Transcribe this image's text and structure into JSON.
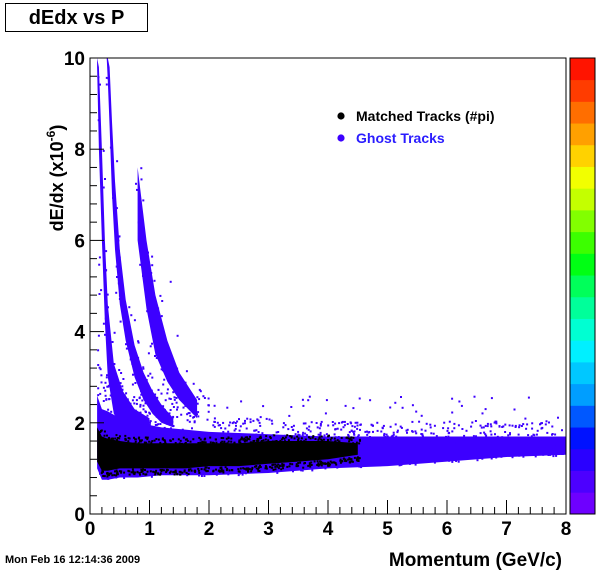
{
  "chart_data": {
    "type": "heatmap",
    "title": "dEdx vs P",
    "xlabel": "Momentum  (GeV/c)",
    "ylabel": "dE/dx (x10",
    "ylabel_exp": "-6",
    "ylabel_close": ")",
    "xlim": [
      0,
      8
    ],
    "ylim": [
      0,
      10
    ],
    "xticks": [
      0,
      1,
      2,
      3,
      4,
      5,
      6,
      7,
      8
    ],
    "yticks": [
      0,
      2,
      4,
      6,
      8,
      10
    ],
    "grid": false,
    "legend_position": "top-right",
    "series": [
      {
        "name": "Matched Tracks (#pi)",
        "color": "#000000",
        "band": {
          "p": [
            0.12,
            0.2,
            0.3,
            0.5,
            0.8,
            1.2,
            1.6,
            2.0,
            2.5,
            3.0,
            3.5,
            4.0,
            4.5
          ],
          "low": [
            1.15,
            0.95,
            0.95,
            1.0,
            1.0,
            1.0,
            1.0,
            1.05,
            1.05,
            1.1,
            1.15,
            1.2,
            1.3
          ],
          "high": [
            1.9,
            1.7,
            1.65,
            1.6,
            1.55,
            1.55,
            1.55,
            1.55,
            1.55,
            1.6,
            1.6,
            1.6,
            1.55
          ]
        }
      },
      {
        "name": "Ghost Tracks",
        "color": "#3c00ff",
        "band": {
          "p": [
            0.12,
            0.2,
            0.3,
            0.5,
            0.8,
            1.2,
            1.6,
            2.0,
            3.0,
            4.0,
            5.0,
            6.0,
            7.0,
            8.0
          ],
          "low": [
            1.0,
            0.75,
            0.75,
            0.8,
            0.8,
            0.85,
            0.85,
            0.85,
            0.9,
            1.0,
            1.05,
            1.15,
            1.25,
            1.3
          ],
          "high": [
            2.6,
            2.3,
            2.25,
            2.1,
            2.0,
            1.9,
            1.85,
            1.8,
            1.75,
            1.7,
            1.7,
            1.7,
            1.7,
            1.7
          ]
        },
        "curves": [
          {
            "p": [
              0.12,
              0.15,
              0.2,
              0.25,
              0.3,
              0.4,
              0.55,
              0.75,
              1.0
            ],
            "low": [
              9.8,
              8.0,
              6.0,
              4.2,
              3.0,
              2.2,
              1.9,
              1.8,
              1.7
            ],
            "high": [
              10.0,
              9.8,
              8.0,
              6.0,
              4.6,
              3.3,
              2.7,
              2.3,
              2.1
            ]
          },
          {
            "p": [
              0.28,
              0.3,
              0.33,
              0.37,
              0.42,
              0.5,
              0.6,
              0.75,
              0.9,
              1.05,
              1.2,
              1.4
            ],
            "low": [
              10.0,
              9.5,
              8.5,
              7.0,
              5.8,
              4.6,
              3.8,
              3.0,
              2.5,
              2.2,
              2.0,
              1.9
            ],
            "high": [
              10.0,
              10.0,
              9.8,
              8.6,
              7.3,
              5.8,
              4.7,
              3.7,
              3.1,
              2.7,
              2.4,
              2.1
            ]
          },
          {
            "p": [
              0.8,
              0.95,
              1.1,
              1.3,
              1.5,
              1.8
            ],
            "low": [
              6.0,
              4.5,
              3.5,
              2.9,
              2.5,
              2.1
            ],
            "high": [
              7.6,
              6.0,
              4.8,
              3.8,
              3.1,
              2.5
            ]
          }
        ]
      }
    ],
    "palette": [
      "#6e00ff",
      "#4c00ff",
      "#2a00ff",
      "#0012ff",
      "#0058ff",
      "#009eff",
      "#00c8ff",
      "#00f0ff",
      "#00ffd2",
      "#00ff9a",
      "#00ff5a",
      "#00ff14",
      "#3cff00",
      "#82ff00",
      "#c4ff00",
      "#f2ff00",
      "#ffd200",
      "#ffa000",
      "#ff6e00",
      "#ff3c00",
      "#ff1400"
    ]
  },
  "timestamp": "Mon Feb 16 12:14:36 2009"
}
